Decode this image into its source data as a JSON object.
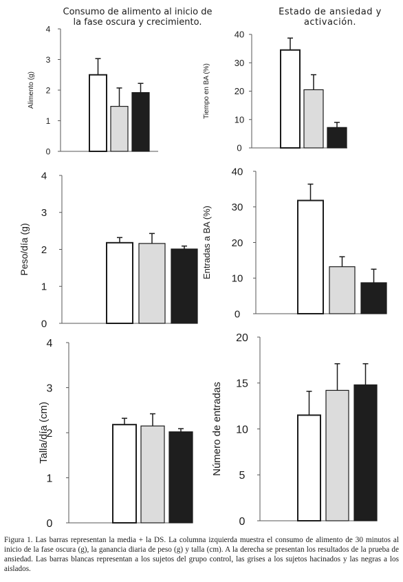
{
  "colors": {
    "control": "#ffffff",
    "hacinados": "#dcdcdc",
    "aislados": "#1e1e1e",
    "outline": "#1a1a1a"
  },
  "titles": {
    "left": "Consumo de alimento al inicio de la fase oscura y crecimiento.",
    "right": "Estado de ansiedad y activación."
  },
  "chart_data": [
    {
      "type": "bar",
      "ylabel": "Alimento (g)",
      "ylim": [
        0,
        4
      ],
      "yticks": [
        "0",
        "1",
        "2",
        "3",
        "4"
      ],
      "series": [
        {
          "values": [
            2.5,
            1.47,
            1.92
          ],
          "errors": [
            0.53,
            0.6,
            0.3
          ]
        }
      ]
    },
    {
      "type": "bar",
      "ylabel": "Tiempo en BA (%)",
      "ylim": [
        0,
        40
      ],
      "yticks": [
        "0",
        "10",
        "20",
        "30",
        "40"
      ],
      "series": [
        {
          "values": [
            34.5,
            20.5,
            7.2
          ],
          "errors": [
            4.2,
            5.3,
            1.8
          ]
        }
      ]
    },
    {
      "type": "bar",
      "ylabel": "Peso/día (g)",
      "ylim": [
        0,
        4
      ],
      "yticks": [
        "0",
        "1",
        "2",
        "3",
        "4"
      ],
      "series": [
        {
          "values": [
            2.18,
            2.16,
            2.01
          ],
          "errors": [
            0.14,
            0.27,
            0.08
          ]
        }
      ]
    },
    {
      "type": "bar",
      "ylabel": "Entradas a BA (%)",
      "ylim": [
        0,
        40
      ],
      "yticks": [
        "0",
        "10",
        "20",
        "30",
        "40"
      ],
      "series": [
        {
          "values": [
            31.8,
            13.2,
            8.7
          ],
          "errors": [
            4.6,
            2.8,
            3.8
          ]
        }
      ]
    },
    {
      "type": "bar",
      "ylabel": "Talla/día (cm)",
      "ylim": [
        0,
        4
      ],
      "yticks": [
        "0",
        "1",
        "2",
        "3",
        "4"
      ],
      "series": [
        {
          "values": [
            2.18,
            2.15,
            2.02
          ],
          "errors": [
            0.14,
            0.27,
            0.07
          ]
        }
      ]
    },
    {
      "type": "bar",
      "ylabel": "Número de entradas",
      "ylim": [
        0,
        20
      ],
      "yticks": [
        "0",
        "5",
        "10",
        "15",
        "20"
      ],
      "series": [
        {
          "values": [
            11.5,
            14.2,
            14.8
          ],
          "errors": [
            2.6,
            2.9,
            2.3
          ]
        }
      ]
    }
  ],
  "caption": "Figura 1. Las barras representan la media + la DS. La columna izquierda muestra el consumo de alimento de 30 minutos al inicio de la fase oscura (g), la ganancia diaria de peso (g) y talla (cm). A la derecha se presentan los resultados de la prueba de ansiedad. Las barras blancas representan a los sujetos del grupo control, las grises a los sujetos hacinados y las negras a los aislados."
}
